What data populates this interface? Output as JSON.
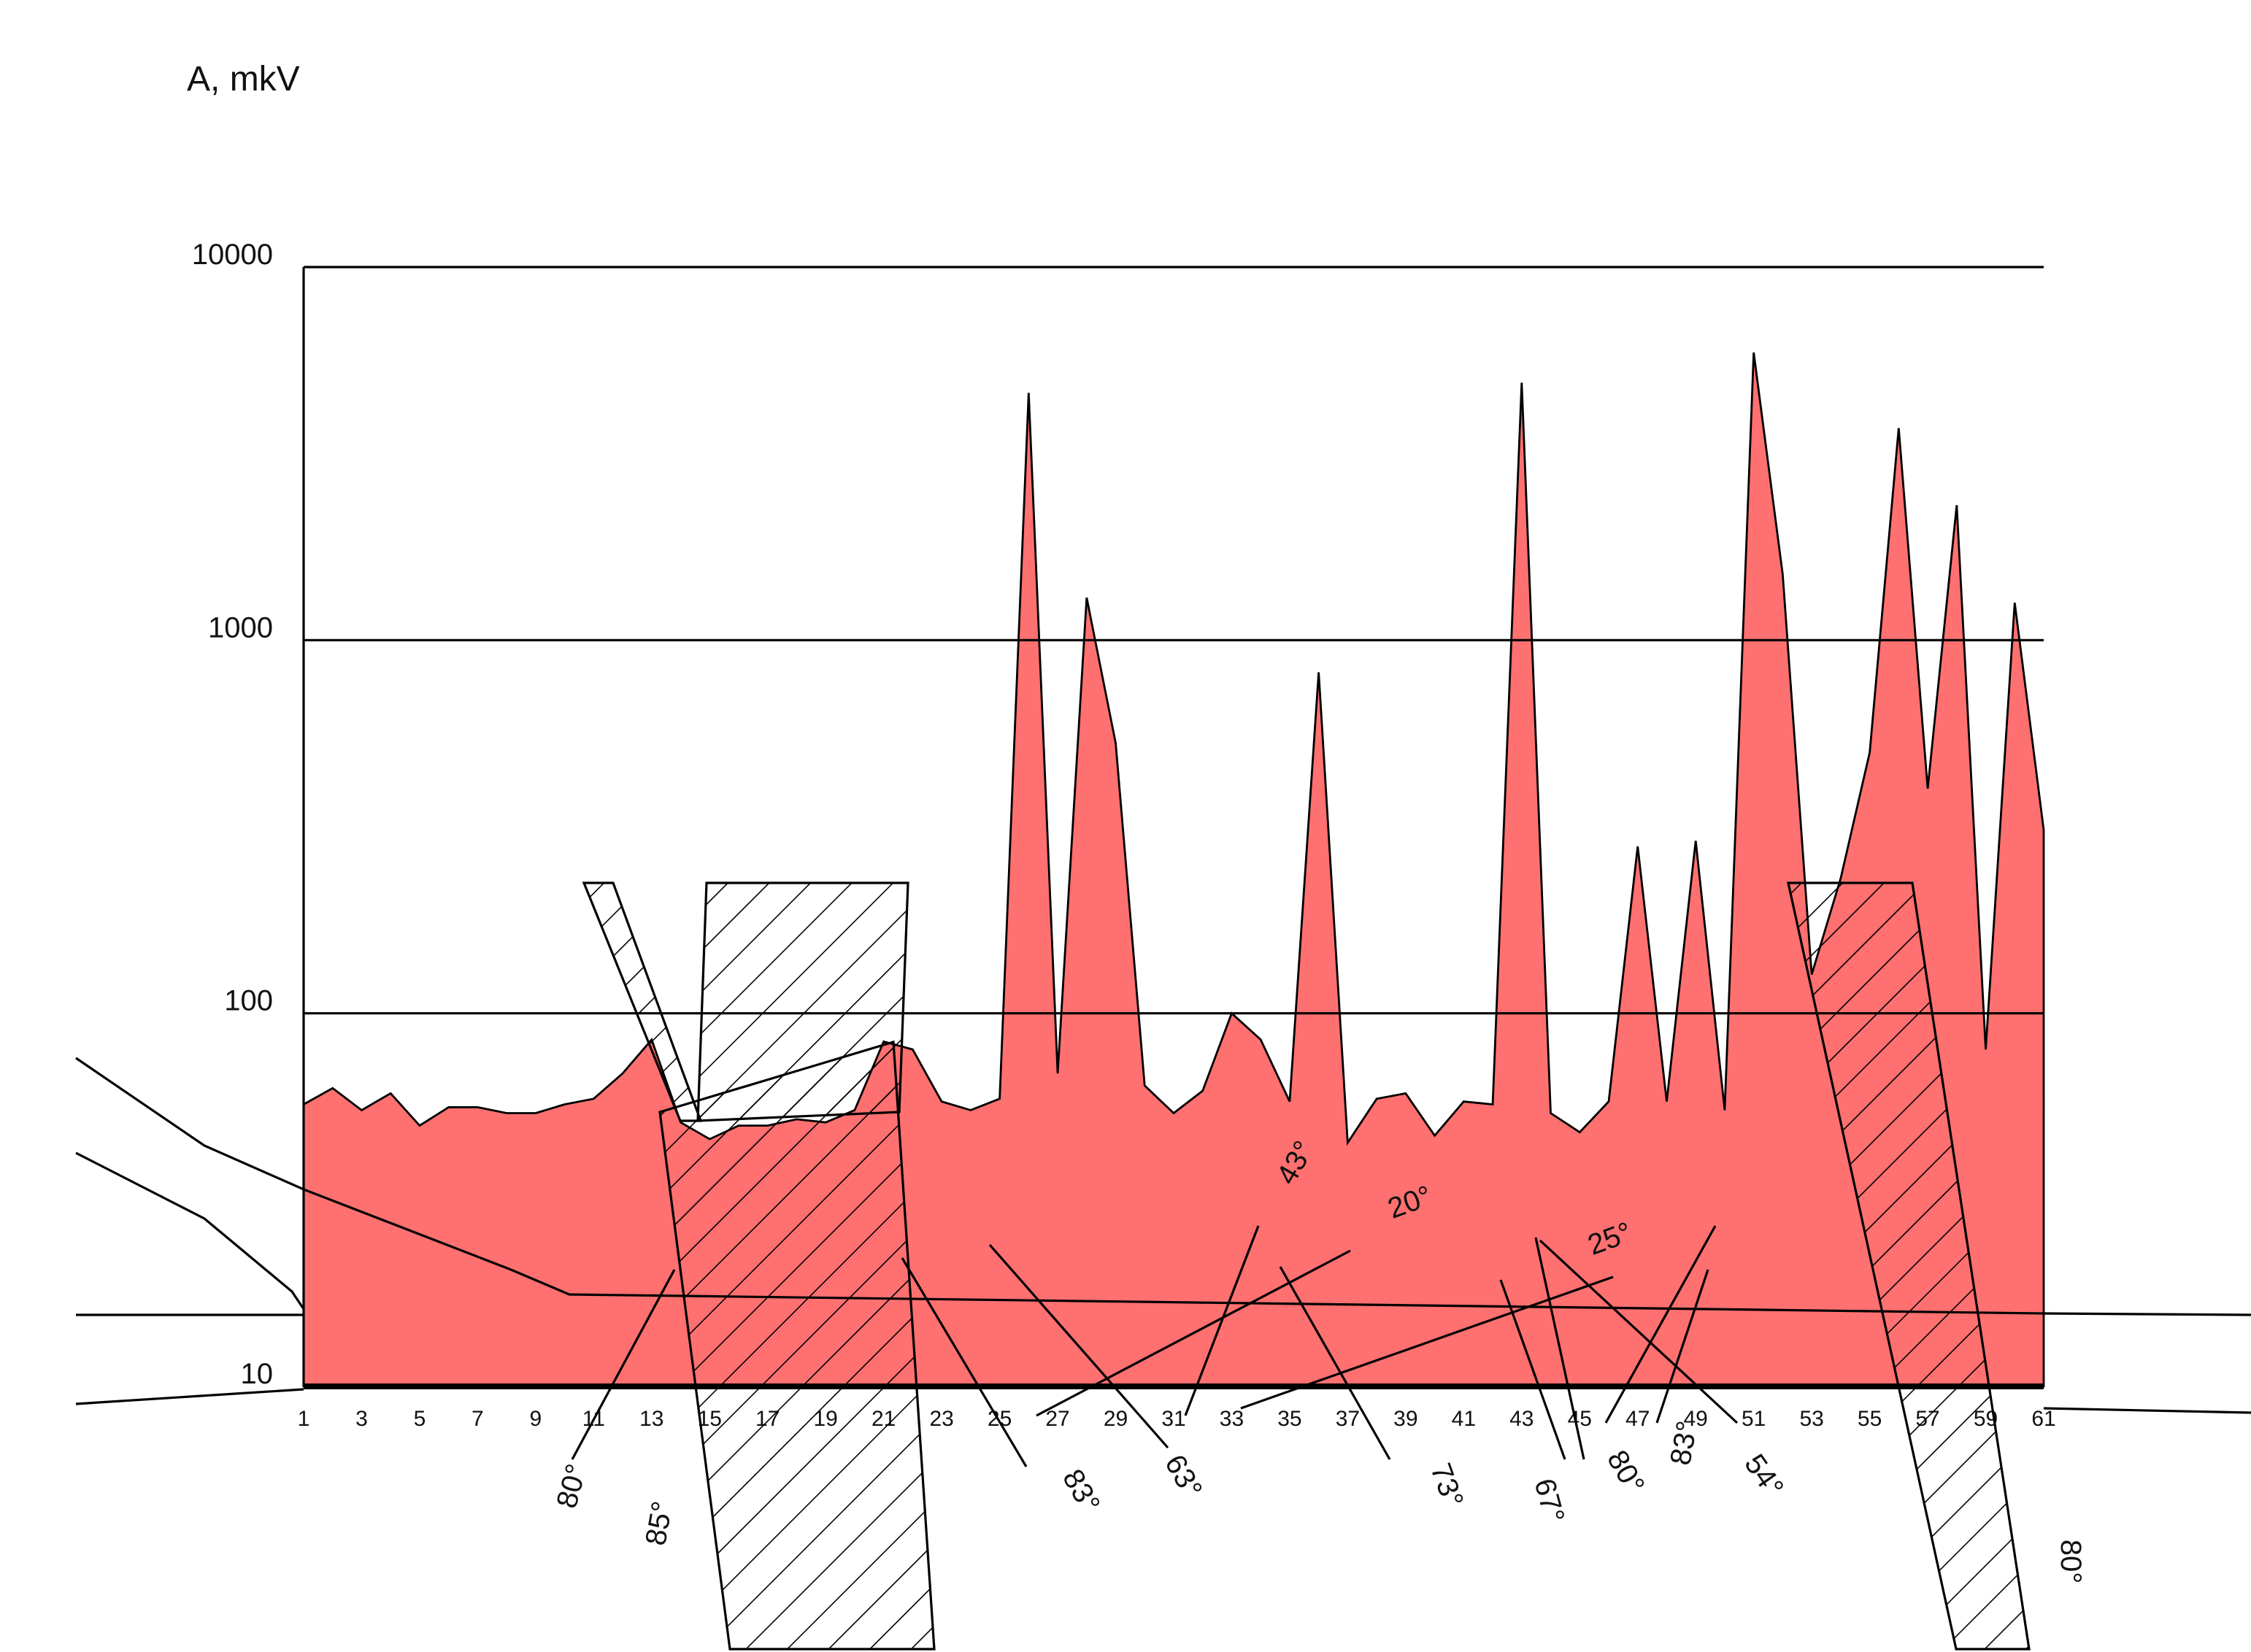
{
  "chart_data": {
    "type": "area",
    "y_title": "A,  mkV",
    "yscale": "log",
    "grid": true,
    "color": "#ff7070",
    "x": [
      1,
      2,
      3,
      4,
      5,
      6,
      7,
      8,
      9,
      10,
      11,
      12,
      13,
      14,
      15,
      16,
      17,
      18,
      19,
      20,
      21,
      22,
      23,
      24,
      25,
      26,
      27,
      28,
      29,
      30,
      31,
      32,
      33,
      34,
      35,
      36,
      37,
      38,
      39,
      40,
      41,
      42,
      43,
      44,
      45,
      46,
      47,
      48,
      49,
      50,
      51,
      52,
      53,
      54,
      55,
      56,
      57,
      58,
      59,
      60,
      61
    ],
    "values": [
      57,
      63,
      55,
      61,
      50,
      56,
      56,
      54,
      54,
      57,
      59,
      69,
      85,
      51,
      46,
      50,
      50,
      52,
      51,
      55,
      84,
      80,
      58,
      55,
      59,
      4600,
      69,
      1300,
      530,
      64,
      54,
      62,
      100,
      85,
      58,
      820,
      45,
      59,
      61,
      47,
      58,
      57,
      4900,
      54,
      48,
      58,
      280,
      58,
      290,
      55,
      5900,
      1500,
      127,
      230,
      500,
      3700,
      400,
      2300,
      80,
      1260,
      310
    ],
    "xlim": [
      1,
      61
    ],
    "xticks": [
      1,
      3,
      5,
      7,
      9,
      11,
      13,
      15,
      17,
      19,
      21,
      23,
      25,
      27,
      29,
      31,
      33,
      35,
      37,
      39,
      41,
      43,
      45,
      47,
      49,
      51,
      53,
      55,
      57,
      59,
      61
    ],
    "ylim": [
      10,
      10000
    ],
    "yticks": [
      10,
      100,
      1000,
      10000
    ],
    "annotations": [
      "80°",
      "85°",
      "83°",
      "63°",
      "43°",
      "20°",
      "73°",
      "67°",
      "80°",
      "25°",
      "83°",
      "54°",
      "80°"
    ]
  }
}
